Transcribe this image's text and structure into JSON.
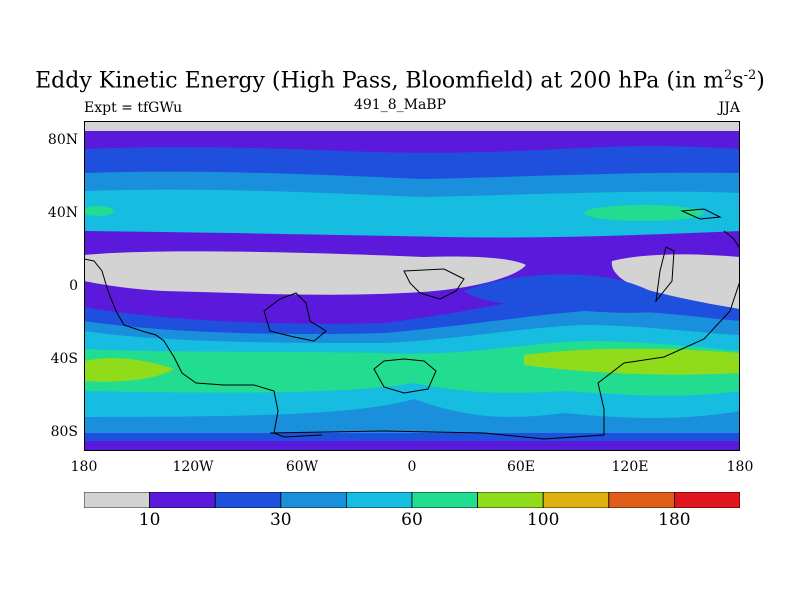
{
  "title": {
    "main": "Eddy Kinetic Energy (High Pass, Bloomfield) at 200 hPa (in m",
    "sup1": "2",
    "mid": "s",
    "sup2": "-2",
    "end": ")"
  },
  "subtitle_left": "Expt = tfGWu",
  "subtitle_center": "491_8_MaBP",
  "subtitle_right": "JJA",
  "axes": {
    "lon_ticks": [
      "180",
      "120W",
      "60W",
      "0",
      "60E",
      "120E",
      "180"
    ],
    "lat_ticks": [
      "80N",
      "40N",
      "0",
      "40S",
      "80S"
    ]
  },
  "colorbar": {
    "colors": [
      "#d3d3d3",
      "#5b19db",
      "#1f4fdd",
      "#1a8fdc",
      "#16bde0",
      "#22dd8f",
      "#90dc1a",
      "#deb010",
      "#e05e1a",
      "#e0161e"
    ],
    "labels": [
      {
        "text": "10",
        "boundary": 1
      },
      {
        "text": "30",
        "boundary": 3
      },
      {
        "text": "60",
        "boundary": 5
      },
      {
        "text": "100",
        "boundary": 7
      },
      {
        "text": "180",
        "boundary": 9
      }
    ]
  }
}
